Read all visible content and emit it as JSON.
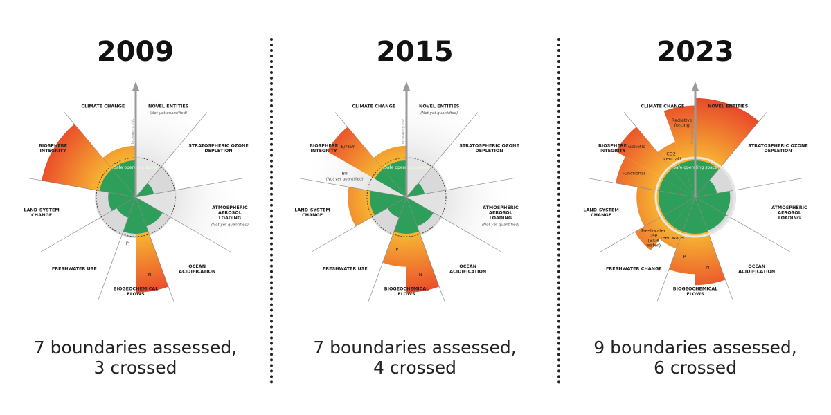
{
  "colors": {
    "safe": "#2e9e5b",
    "globe": "#d9d9d9",
    "crossed_inner": "#f7b733",
    "crossed_outer": "#e8402a",
    "not_quantified": "#e2e2e2",
    "arrow": "#9a9a9a"
  },
  "arrow_label": "Increasing risk",
  "safe_label": "Safe operating space",
  "panels": [
    {
      "year": "2009",
      "caption_line1": "7 boundaries assessed,",
      "caption_line2": "3 crossed",
      "sectors": [
        {
          "label": [
            "CLIMATE CHANGE"
          ],
          "segments": [
            {
              "label": "",
              "level": 1.4,
              "status": "crossed"
            }
          ]
        },
        {
          "label": [
            "NOVEL ENTITIES"
          ],
          "sublabel": "(Not yet quantified)",
          "segments": [
            {
              "label": "",
              "level": 0,
              "status": "not-quantified"
            }
          ]
        },
        {
          "label": [
            "STRATOSPHERIC OZONE",
            "DEPLETION"
          ],
          "segments": [
            {
              "label": "",
              "level": 0.5,
              "status": "safe"
            }
          ]
        },
        {
          "label": [
            "ATMOSPHERIC",
            "AEROSOL",
            "LOADING"
          ],
          "sublabel": "(Not yet quantified)",
          "segments": [
            {
              "label": "",
              "level": 0,
              "status": "not-quantified"
            }
          ]
        },
        {
          "label": [
            "OCEAN",
            "ACIDIFICATION"
          ],
          "segments": [
            {
              "label": "",
              "level": 0.85,
              "status": "safe"
            }
          ]
        },
        {
          "label": [
            "BIOGEOCHEMICAL",
            "FLOWS"
          ],
          "segments": [
            {
              "label": "N",
              "level": 2.6,
              "status": "crossed"
            },
            {
              "label": "P",
              "level": 1.0,
              "status": "safe"
            }
          ]
        },
        {
          "label": [
            "FRESHWATER USE"
          ],
          "segments": [
            {
              "label": "",
              "level": 0.6,
              "status": "safe"
            }
          ]
        },
        {
          "label": [
            "LAND-SYSTEM",
            "CHANGE"
          ],
          "segments": [
            {
              "label": "",
              "level": 0.75,
              "status": "safe"
            }
          ]
        },
        {
          "label": [
            "BIOSPHERE",
            "INTEGRITY"
          ],
          "segments": [
            {
              "label": "",
              "level": 2.6,
              "status": "crossed"
            }
          ]
        }
      ]
    },
    {
      "year": "2015",
      "caption_line1": "7 boundaries assessed,",
      "caption_line2": "4 crossed",
      "sectors": [
        {
          "label": [
            "CLIMATE CHANGE"
          ],
          "segments": [
            {
              "label": "",
              "level": 1.4,
              "status": "crossed"
            }
          ]
        },
        {
          "label": [
            "NOVEL ENTITIES"
          ],
          "sublabel": "(Not yet quantified)",
          "segments": [
            {
              "label": "",
              "level": 0,
              "status": "not-quantified"
            }
          ]
        },
        {
          "label": [
            "STRATOSPHERIC OZONE",
            "DEPLETION"
          ],
          "segments": [
            {
              "label": "",
              "level": 0.5,
              "status": "safe"
            }
          ]
        },
        {
          "label": [
            "ATMOSPHERIC",
            "AEROSOL",
            "LOADING"
          ],
          "sublabel": "(Not yet quantified)",
          "segments": [
            {
              "label": "",
              "level": 0,
              "status": "not-quantified"
            }
          ]
        },
        {
          "label": [
            "OCEAN",
            "ACIDIFICATION"
          ],
          "segments": [
            {
              "label": "",
              "level": 0.85,
              "status": "safe"
            }
          ]
        },
        {
          "label": [
            "BIOGEOCHEMICAL",
            "FLOWS"
          ],
          "segments": [
            {
              "label": "N",
              "level": 2.6,
              "status": "crossed"
            },
            {
              "label": "P",
              "level": 1.9,
              "status": "crossed"
            }
          ]
        },
        {
          "label": [
            "FRESHWATER USE"
          ],
          "segments": [
            {
              "label": "",
              "level": 0.6,
              "status": "safe"
            }
          ]
        },
        {
          "label": [
            "LAND-SYSTEM",
            "CHANGE"
          ],
          "segments": [
            {
              "label": "",
              "level": 1.6,
              "status": "crossed"
            }
          ]
        },
        {
          "label": [
            "BIOSPHERE",
            "INTEGRITY"
          ],
          "segments": [
            {
              "label": "BII",
              "sublabel": "(Not yet quantified)",
              "level": 0,
              "status": "not-quantified"
            },
            {
              "label": "E/MSY",
              "level": 2.5,
              "status": "crossed"
            }
          ]
        }
      ]
    },
    {
      "year": "2023",
      "caption_line1": "9 boundaries assessed,",
      "caption_line2": "6 crossed",
      "sectors": [
        {
          "label": [
            "CLIMATE CHANGE"
          ],
          "segments": [
            {
              "label": "CO2 concentration",
              "level": 1.6,
              "status": "crossed"
            },
            {
              "label": "Radiative forcing",
              "level": 2.5,
              "status": "crossed"
            }
          ]
        },
        {
          "label": [
            "NOVEL ENTITIES"
          ],
          "segments": [
            {
              "label": "",
              "level": 2.7,
              "status": "crossed"
            }
          ]
        },
        {
          "label": [
            "STRATOSPHERIC OZONE",
            "DEPLETION"
          ],
          "segments": [
            {
              "label": "",
              "level": 0.6,
              "status": "safe"
            }
          ]
        },
        {
          "label": [
            "ATMOSPHERIC",
            "AEROSOL",
            "LOADING"
          ],
          "segments": [
            {
              "label": "",
              "level": 0.95,
              "status": "safe"
            }
          ]
        },
        {
          "label": [
            "OCEAN",
            "ACIDIFICATION"
          ],
          "segments": [
            {
              "label": "",
              "level": 0.97,
              "status": "safe"
            }
          ]
        },
        {
          "label": [
            "BIOGEOCHEMICAL",
            "FLOWS"
          ],
          "segments": [
            {
              "label": "N",
              "level": 2.4,
              "status": "crossed"
            },
            {
              "label": "P",
              "level": 2.1,
              "status": "crossed"
            }
          ]
        },
        {
          "label": [
            "FRESHWATER CHANGE"
          ],
          "segments": [
            {
              "label": "Green water",
              "level": 1.5,
              "status": "crossed"
            },
            {
              "label": "Freshwater use (Blue water)",
              "level": 1.9,
              "status": "crossed"
            }
          ]
        },
        {
          "label": [
            "LAND-SYSTEM",
            "CHANGE"
          ],
          "segments": [
            {
              "label": "",
              "level": 1.6,
              "status": "crossed"
            }
          ]
        },
        {
          "label": [
            "BIOSPHERE",
            "INTEGRITY"
          ],
          "segments": [
            {
              "label": "Functional",
              "level": 2.2,
              "status": "crossed"
            },
            {
              "label": "Genetic",
              "level": 2.5,
              "status": "crossed"
            }
          ]
        }
      ]
    }
  ]
}
